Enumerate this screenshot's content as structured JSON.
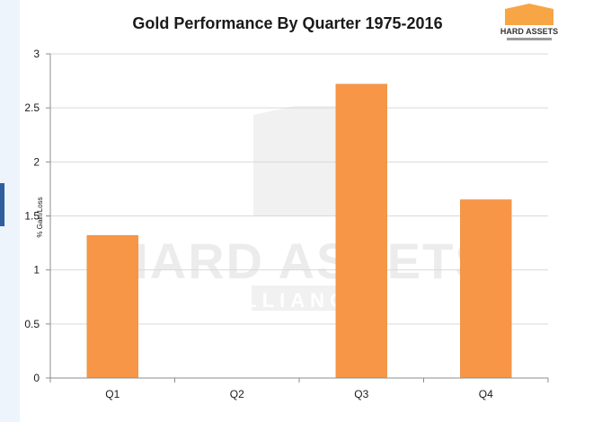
{
  "logo": {
    "text": "HARD ASSETS"
  },
  "watermark": {
    "line1": "HARD ASSETS",
    "line2": "ALLIANCE"
  },
  "colors": {
    "bar": "#f79646",
    "bar_stroke": "#e58a3c",
    "grid": "#d9d9d9",
    "axis": "#8c8c8c",
    "text": "#1a1a1a",
    "logo_orange": "#f7a545",
    "watermark": "#ececec"
  },
  "chart_data": {
    "type": "bar",
    "title": "Gold Performance By Quarter 1975-2016",
    "categories": [
      "Q1",
      "Q2",
      "Q3",
      "Q4"
    ],
    "values": [
      1.32,
      0,
      2.72,
      1.65
    ],
    "xlabel": "",
    "ylabel": "% Gain/Loss",
    "ylim": [
      0,
      3
    ],
    "yticks": [
      "0",
      "0.5",
      "1",
      "1.5",
      "2",
      "2.5",
      "3"
    ],
    "ytick_values": [
      0,
      0.5,
      1,
      1.5,
      2,
      2.5,
      3
    ],
    "grid": true,
    "legend": "none"
  }
}
